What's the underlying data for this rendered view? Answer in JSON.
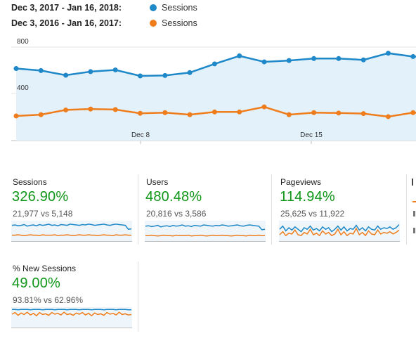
{
  "legend": [
    {
      "range": "Dec 3, 2017 - Jan 16, 2018:",
      "series": "Sessions",
      "color": "#1e88c8"
    },
    {
      "range": "Dec 3, 2016 - Jan 16, 2017:",
      "series": "Sessions",
      "color": "#f07d1c"
    }
  ],
  "chart_data": {
    "type": "line",
    "y_ticks": [
      "800",
      "400"
    ],
    "x_ticks": [
      "Dec 8",
      "Dec 15"
    ],
    "ylim": [
      0,
      800
    ],
    "grid": true,
    "series": [
      {
        "color": "#1e88c8",
        "values": [
          555,
          540,
          505,
          532,
          545,
          500,
          503,
          525,
          590,
          650,
          605,
          615,
          630,
          630,
          620,
          670,
          645
        ]
      },
      {
        "color": "#f07d1c",
        "values": [
          200,
          210,
          245,
          252,
          248,
          220,
          225,
          210,
          230,
          230,
          268,
          210,
          225,
          222,
          218,
          195,
          225
        ]
      }
    ]
  },
  "cards": [
    {
      "title": "Sessions",
      "value": "326.90%",
      "compare": "21,977 vs 5,148",
      "spark_a": [
        40,
        41,
        39,
        40,
        42,
        38,
        40,
        41,
        39,
        42,
        40,
        41,
        43,
        40,
        41,
        39,
        42,
        41,
        40,
        43,
        42,
        41,
        40,
        42,
        41,
        43,
        42,
        40,
        41,
        42,
        43,
        41,
        40,
        42,
        43,
        42,
        41,
        40,
        30,
        31
      ],
      "spark_b": [
        15,
        15,
        16,
        15,
        14,
        15,
        16,
        15,
        15,
        14,
        16,
        15,
        15,
        15,
        16,
        14,
        15,
        15,
        16,
        15,
        14,
        15,
        16,
        15,
        15,
        16,
        15,
        15,
        14,
        15,
        16,
        15,
        15,
        14,
        16,
        15,
        15,
        16,
        15,
        15
      ]
    },
    {
      "title": "Users",
      "value": "480.48%",
      "compare": "20,816 vs 3,586",
      "spark_a": [
        38,
        39,
        37,
        38,
        40,
        36,
        38,
        39,
        37,
        40,
        38,
        39,
        41,
        38,
        39,
        37,
        40,
        39,
        38,
        41,
        40,
        39,
        38,
        40,
        39,
        41,
        40,
        38,
        39,
        40,
        41,
        39,
        38,
        40,
        41,
        40,
        39,
        38,
        29,
        30
      ],
      "spark_b": [
        14,
        14,
        15,
        14,
        13,
        14,
        15,
        14,
        14,
        13,
        15,
        14,
        14,
        14,
        15,
        13,
        14,
        14,
        15,
        14,
        13,
        14,
        15,
        14,
        14,
        15,
        14,
        14,
        13,
        14,
        15,
        14,
        14,
        13,
        15,
        14,
        14,
        15,
        14,
        14
      ]
    },
    {
      "title": "Pageviews",
      "value": "114.94%",
      "compare": "25,625 vs 11,922",
      "spark_a": [
        30,
        38,
        26,
        34,
        28,
        36,
        30,
        24,
        34,
        30,
        38,
        28,
        32,
        26,
        36,
        30,
        34,
        24,
        30,
        38,
        28,
        36,
        26,
        32,
        30,
        40,
        28,
        34,
        26,
        36,
        30,
        28,
        38,
        30,
        34,
        32,
        36,
        30,
        34,
        42
      ],
      "spark_b": [
        16,
        24,
        14,
        20,
        18,
        28,
        16,
        14,
        22,
        18,
        30,
        16,
        20,
        14,
        26,
        18,
        22,
        14,
        18,
        30,
        16,
        24,
        14,
        20,
        18,
        32,
        16,
        22,
        14,
        26,
        18,
        16,
        28,
        18,
        22,
        20,
        24,
        18,
        22,
        28
      ]
    },
    {
      "title": "% New Sessions",
      "value": "49.00%",
      "compare": "93.81% vs 62.96%",
      "spark_a": [
        46,
        46,
        45,
        46,
        46,
        46,
        45,
        46,
        46,
        46,
        45,
        46,
        46,
        46,
        45,
        46,
        46,
        46,
        45,
        46,
        46,
        46,
        45,
        46,
        46,
        46,
        45,
        46,
        46,
        46,
        45,
        46,
        46,
        46,
        45,
        46,
        46,
        46,
        45,
        45
      ],
      "spark_b": [
        34,
        38,
        31,
        37,
        33,
        39,
        32,
        36,
        30,
        38,
        33,
        35,
        31,
        38,
        34,
        36,
        32,
        39,
        33,
        35,
        31,
        37,
        34,
        38,
        32,
        36,
        30,
        37,
        33,
        35,
        31,
        38,
        34,
        36,
        32,
        39,
        33,
        35,
        32,
        33
      ]
    }
  ],
  "partial_card": {
    "color": "#f07d1c"
  }
}
